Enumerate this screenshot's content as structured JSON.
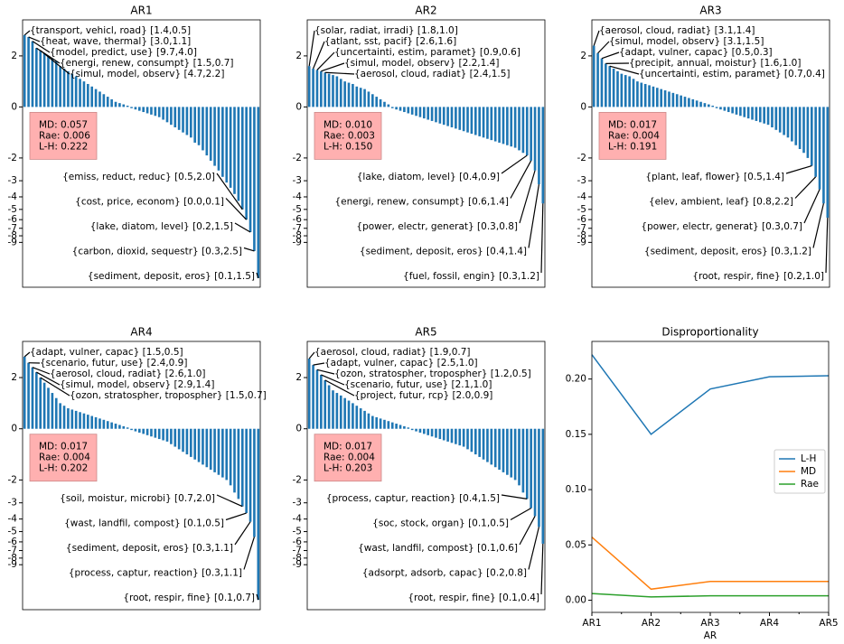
{
  "chart_data": [
    {
      "type": "bar",
      "title": "AR1",
      "color": "#1f77b4",
      "yscale": "symlog",
      "ylim": [
        -20,
        3.8
      ],
      "yticks": [
        -9,
        -8,
        -7,
        -6,
        -5,
        -4,
        -3,
        -2,
        0,
        2
      ],
      "values": [
        2.9,
        2.8,
        2.6,
        2.3,
        2.2,
        2.1,
        2.0,
        1.9,
        1.8,
        1.6,
        1.5,
        1.4,
        1.3,
        1.2,
        1.1,
        1.0,
        0.9,
        0.8,
        0.7,
        0.6,
        0.5,
        0.4,
        0.3,
        0.2,
        0.15,
        0.1,
        0.05,
        -0.05,
        -0.1,
        -0.15,
        -0.2,
        -0.25,
        -0.3,
        -0.35,
        -0.4,
        -0.5,
        -0.6,
        -0.7,
        -0.8,
        -0.9,
        -1.0,
        -1.1,
        -1.2,
        -1.4,
        -1.5,
        -1.7,
        -1.9,
        -2.1,
        -2.3,
        -2.5,
        -2.8,
        -3.1,
        -3.4,
        -3.8,
        -4.3,
        -5.0,
        -6.0,
        -7.5,
        -10.5,
        -17
      ],
      "annotations": [
        "{transport, vehicl, road} [1.4,0.5]",
        "{heat, wave, thermal} [3.0,1.1]",
        "{model, predict, use} [9.7,4.0]",
        "{energi, renew, consumpt} [1.5,0.7]",
        "{simul, model, observ} [4.7,2.2]",
        "{emiss, reduct, reduc} [0.5,2.0]",
        "{cost, price, econom} [0.0,0.1]",
        "{lake, diatom, level} [0.2,1.5]",
        "{carbon, dioxid, sequestr} [0.3,2.5]",
        "{sediment, deposit, eros} [0.1,1.5]"
      ],
      "stats": [
        "MD: 0.057",
        "Rae: 0.006",
        "L-H: 0.222"
      ]
    },
    {
      "type": "bar",
      "title": "AR2",
      "color": "#1f77b4",
      "yscale": "symlog",
      "ylim": [
        -20,
        3.8
      ],
      "yticks": [
        -9,
        -8,
        -7,
        -6,
        -5,
        -4,
        -3,
        -2,
        0,
        2
      ],
      "values": [
        1.6,
        1.5,
        1.45,
        1.4,
        1.35,
        1.3,
        1.25,
        1.2,
        1.1,
        1.0,
        0.95,
        0.9,
        0.8,
        0.75,
        0.7,
        0.6,
        0.5,
        0.4,
        0.3,
        0.2,
        0.1,
        -0.05,
        -0.1,
        -0.15,
        -0.2,
        -0.25,
        -0.3,
        -0.35,
        -0.4,
        -0.45,
        -0.5,
        -0.55,
        -0.6,
        -0.65,
        -0.7,
        -0.75,
        -0.8,
        -0.85,
        -0.9,
        -0.95,
        -1.0,
        -1.05,
        -1.1,
        -1.15,
        -1.2,
        -1.25,
        -1.3,
        -1.35,
        -1.4,
        -1.45,
        -1.5,
        -1.55,
        -1.6,
        -1.7,
        -1.8,
        -1.9,
        -2.1,
        -2.5,
        -3.2,
        -4.5
      ],
      "annotations": [
        "{solar, radiat, irradi} [1.8,1.0]",
        "{atlant, sst, pacif} [2.6,1.6]",
        "{uncertainti, estim, paramet} [0.9,0.6]",
        "{simul, model, observ} [2.2,1.4]",
        "{aerosol, cloud, radiat} [2.4,1.5]",
        "{lake, diatom, level} [0.4,0.9]",
        "{energi, renew, consumpt} [0.6,1.4]",
        "{power, electr, generat} [0.3,0.8]",
        "{sediment, deposit, eros} [0.4,1.4]",
        "{fuel, fossil, engin} [0.3,1.2]"
      ],
      "stats": [
        "MD: 0.010",
        "Rae: 0.003",
        "L-H: 0.150"
      ]
    },
    {
      "type": "bar",
      "title": "AR3",
      "color": "#1f77b4",
      "yscale": "symlog",
      "ylim": [
        -20,
        3.8
      ],
      "yticks": [
        -9,
        -8,
        -7,
        -6,
        -5,
        -4,
        -3,
        -2,
        0,
        2
      ],
      "values": [
        2.4,
        2.1,
        1.9,
        1.7,
        1.6,
        1.5,
        1.4,
        1.3,
        1.25,
        1.2,
        1.1,
        1.0,
        0.95,
        0.9,
        0.85,
        0.8,
        0.75,
        0.7,
        0.65,
        0.6,
        0.55,
        0.5,
        0.45,
        0.4,
        0.35,
        0.3,
        0.25,
        0.2,
        0.15,
        0.1,
        0.05,
        -0.05,
        -0.1,
        -0.15,
        -0.2,
        -0.25,
        -0.3,
        -0.35,
        -0.4,
        -0.45,
        -0.5,
        -0.55,
        -0.6,
        -0.65,
        -0.7,
        -0.8,
        -0.9,
        -1.0,
        -1.1,
        -1.2,
        -1.35,
        -1.5,
        -1.65,
        -1.8,
        -2.0,
        -2.3,
        -2.8,
        -3.5,
        -4.5,
        -5.8
      ],
      "annotations": [
        "{aerosol, cloud, radiat} [3.1,1.4]",
        "{simul, model, observ} [3.1,1.5]",
        "{adapt, vulner, capac} [0.5,0.3]",
        "{precipit, annual, moistur} [1.6,1.0]",
        "{uncertainti, estim, paramet} [0.7,0.4]",
        "{plant, leaf, flower} [0.5,1.4]",
        "{elev, ambient, leaf} [0.8,2.2]",
        "{power, electr, generat} [0.3,0.7]",
        "{sediment, deposit, eros} [0.3,1.2]",
        "{root, respir, fine} [0.2,1.0]"
      ],
      "stats": [
        "MD: 0.017",
        "Rae: 0.004",
        "L-H: 0.191"
      ]
    },
    {
      "type": "bar",
      "title": "AR4",
      "color": "#1f77b4",
      "yscale": "symlog",
      "ylim": [
        -20,
        3.8
      ],
      "yticks": [
        -9,
        -8,
        -7,
        -6,
        -5,
        -4,
        -3,
        -2,
        0,
        2
      ],
      "values": [
        2.9,
        2.6,
        2.4,
        2.2,
        2.0,
        1.8,
        1.6,
        1.4,
        1.2,
        1.0,
        0.9,
        0.8,
        0.75,
        0.7,
        0.65,
        0.6,
        0.55,
        0.5,
        0.45,
        0.4,
        0.35,
        0.3,
        0.25,
        0.2,
        0.15,
        0.1,
        0.05,
        -0.05,
        -0.1,
        -0.15,
        -0.2,
        -0.25,
        -0.3,
        -0.35,
        -0.4,
        -0.45,
        -0.5,
        -0.6,
        -0.7,
        -0.8,
        -0.9,
        -1.0,
        -1.1,
        -1.2,
        -1.3,
        -1.4,
        -1.5,
        -1.6,
        -1.7,
        -1.8,
        -1.9,
        -2.0,
        -2.2,
        -2.5,
        -2.8,
        -3.2,
        -3.6,
        -4.2,
        -5.5,
        -16.8
      ],
      "annotations": [
        "{adapt, vulner, capac} [1.5,0.5]",
        "{scenario, futur, use} [2.4,0.9]",
        "{aerosol, cloud, radiat} [2.6,1.0]",
        "{simul, model, observ} [2.9,1.4]",
        "{ozon, stratospher, tropospher} [1.5,0.7]",
        "{soil, moistur, microbi} [0.7,2.0]",
        "{wast, landfil, compost} [0.1,0.5]",
        "{sediment, deposit, eros} [0.3,1.1]",
        "{process, captur, reaction} [0.3,1.1]",
        "{root, respir, fine} [0.1,0.7]"
      ],
      "stats": [
        "MD: 0.017",
        "Rae: 0.004",
        "L-H: 0.202"
      ]
    },
    {
      "type": "bar",
      "title": "AR5",
      "color": "#1f77b4",
      "yscale": "symlog",
      "ylim": [
        -20,
        3.8
      ],
      "yticks": [
        -9,
        -8,
        -7,
        -6,
        -5,
        -4,
        -3,
        -2,
        0,
        2
      ],
      "values": [
        2.8,
        2.5,
        2.3,
        2.1,
        1.9,
        1.7,
        1.5,
        1.4,
        1.3,
        1.2,
        1.1,
        1.0,
        0.9,
        0.8,
        0.7,
        0.6,
        0.5,
        0.45,
        0.4,
        0.35,
        0.3,
        0.25,
        0.2,
        0.15,
        0.1,
        0.05,
        -0.05,
        -0.1,
        -0.15,
        -0.2,
        -0.25,
        -0.3,
        -0.35,
        -0.4,
        -0.45,
        -0.5,
        -0.55,
        -0.6,
        -0.65,
        -0.7,
        -0.8,
        -0.9,
        -1.0,
        -1.1,
        -1.2,
        -1.3,
        -1.4,
        -1.5,
        -1.6,
        -1.7,
        -1.8,
        -1.9,
        -2.0,
        -2.2,
        -2.5,
        -2.8,
        -3.3,
        -3.8,
        -4.6,
        -6.2
      ],
      "annotations": [
        "{aerosol, cloud, radiat} [1.9,0.7]",
        "{adapt, vulner, capac} [2.5,1.0]",
        "{ozon, stratospher, tropospher} [1.2,0.5]",
        "{scenario, futur, use} [2.1,1.0]",
        "{project, futur, rcp} [2.0,0.9]",
        "{process, captur, reaction} [0.4,1.5]",
        "{soc, stock, organ} [0.1,0.5]",
        "{wast, landfil, compost} [0.1,0.6]",
        "{adsorpt, adsorb, capac} [0.2,0.8]",
        "{root, respir, fine} [0.1,0.4]"
      ],
      "stats": [
        "MD: 0.017",
        "Rae: 0.004",
        "L-H: 0.203"
      ]
    },
    {
      "type": "line",
      "title": "Disproportionality",
      "xlabel": "AR",
      "categories": [
        "AR1",
        "AR2",
        "AR3",
        "AR4",
        "AR5"
      ],
      "ylim": [
        -0.011,
        0.234
      ],
      "yticks": [
        {
          "value": 0,
          "label": "0.00"
        },
        {
          "value": 0.05,
          "label": "0.05"
        },
        {
          "value": 0.1,
          "label": "0.10"
        },
        {
          "value": 0.15,
          "label": "0.15"
        },
        {
          "value": 0.2,
          "label": "0.20"
        }
      ],
      "legend": "center right",
      "series": [
        {
          "name": "L-H",
          "color": "#1f77b4",
          "values": [
            0.222,
            0.15,
            0.191,
            0.202,
            0.203
          ]
        },
        {
          "name": "MD",
          "color": "#ff7f0e",
          "values": [
            0.057,
            0.01,
            0.017,
            0.017,
            0.017
          ]
        },
        {
          "name": "Rae",
          "color": "#2ca02c",
          "values": [
            0.006,
            0.003,
            0.004,
            0.004,
            0.004
          ]
        }
      ]
    }
  ]
}
